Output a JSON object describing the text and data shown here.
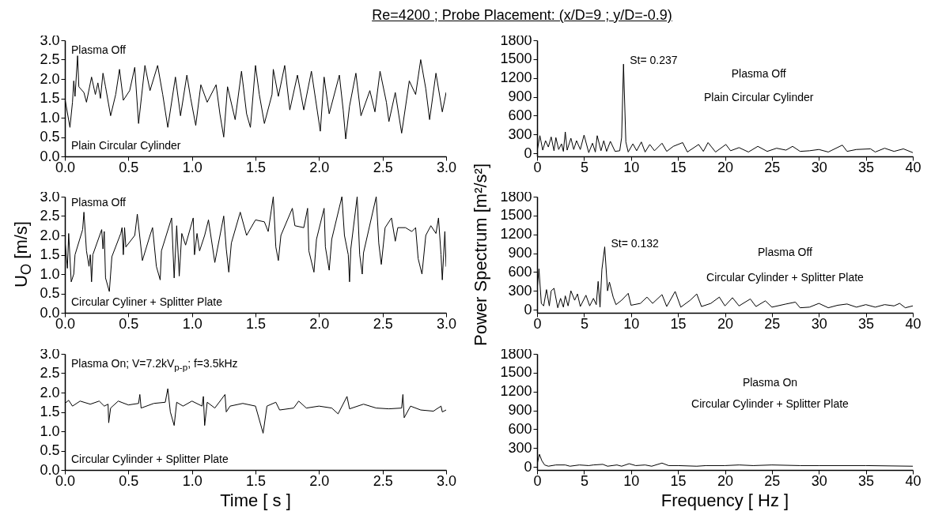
{
  "chart_data": [
    {
      "type": "line",
      "title": "Re=4200 ;  Probe Placement: (x/D=9 ; y/D=-0.9)",
      "annotations": [
        "Plasma Off",
        "Plain Circular Cylinder"
      ],
      "x": [
        0,
        0.04,
        0.06,
        0.07,
        0.08,
        0.1,
        0.11,
        0.15,
        0.17,
        0.21,
        0.24,
        0.26,
        0.28,
        0.3,
        0.32,
        0.36,
        0.4,
        0.43,
        0.46,
        0.51,
        0.55,
        0.58,
        0.63,
        0.67,
        0.73,
        0.77,
        0.81,
        0.87,
        0.91,
        0.96,
        0.99,
        1.03,
        1.07,
        1.12,
        1.19,
        1.22,
        1.25,
        1.28,
        1.34,
        1.39,
        1.43,
        1.46,
        1.5,
        1.53,
        1.57,
        1.63,
        1.64,
        1.68,
        1.73,
        1.77,
        1.83,
        1.88,
        1.94,
        2.01,
        2.04,
        2.08,
        2.16,
        2.19,
        2.21,
        2.24,
        2.29,
        2.33,
        2.4,
        2.44,
        2.48,
        2.53,
        2.55,
        2.6,
        2.65,
        2.71,
        2.76,
        2.8,
        2.84,
        2.87,
        2.92,
        2.97,
        3.0
      ],
      "series": [
        {
          "color": "#000000",
          "values": [
            1.5,
            0.75,
            1.4,
            1.95,
            1.55,
            2.6,
            1.8,
            1.65,
            1.4,
            2.05,
            1.6,
            1.9,
            1.5,
            2.15,
            1.8,
            1.05,
            1.6,
            2.25,
            1.45,
            1.7,
            2.3,
            0.85,
            2.35,
            1.7,
            2.35,
            1.6,
            0.75,
            2.05,
            1.05,
            2.1,
            1.5,
            0.8,
            1.85,
            1.4,
            1.85,
            1.1,
            0.5,
            1.8,
            0.95,
            2.2,
            1.1,
            0.75,
            2.35,
            1.6,
            0.85,
            1.6,
            2.25,
            1.55,
            2.35,
            1.2,
            2.1,
            1.2,
            2.2,
            0.65,
            2.05,
            1.1,
            2.1,
            1.2,
            0.45,
            1.3,
            2.15,
            1.05,
            1.7,
            1.15,
            2.2,
            1.4,
            0.9,
            1.65,
            0.6,
            1.95,
            1.6,
            2.5,
            1.75,
            0.95,
            2.15,
            1.15,
            1.65
          ]
        }
      ],
      "xlim": [
        0,
        3
      ],
      "ylim": [
        0,
        3
      ],
      "xticks": [
        {
          "value": 0,
          "label": "0.0"
        },
        {
          "value": 0.5,
          "label": "0.5"
        },
        {
          "value": 1,
          "label": "1.0"
        },
        {
          "value": 1.5,
          "label": "1.5"
        },
        {
          "value": 2,
          "label": "2.0"
        },
        {
          "value": 2.5,
          "label": "2.5"
        },
        {
          "value": 3,
          "label": "3.0"
        }
      ],
      "yticks": [
        {
          "value": 0,
          "label": "0.0"
        },
        {
          "value": 0.5,
          "label": "0.5"
        },
        {
          "value": 1,
          "label": "1.0"
        },
        {
          "value": 1.5,
          "label": "1.5"
        },
        {
          "value": 2,
          "label": "2.0"
        },
        {
          "value": 2.5,
          "label": "2.5"
        },
        {
          "value": 3,
          "label": "3.0"
        }
      ]
    },
    {
      "type": "line",
      "annotations": [
        {
          "text": "St= 0.237",
          "x": 9.2,
          "y": 1420
        },
        "Plasma Off",
        "Plain Circular Cylinder"
      ],
      "x": [
        0,
        0.3,
        0.6,
        0.9,
        1.2,
        1.5,
        1.8,
        2.0,
        2.3,
        2.6,
        2.8,
        3.0,
        3.2,
        3.6,
        3.9,
        4.2,
        4.6,
        5.0,
        5.5,
        5.9,
        6.2,
        6.4,
        6.8,
        7.1,
        7.4,
        7.8,
        8.3,
        8.8,
        9.0,
        9.2,
        9.45,
        9.7,
        10.2,
        10.6,
        11.1,
        11.5,
        12.0,
        12.5,
        13.3,
        13.8,
        14.5,
        15.5,
        16.0,
        17.2,
        17.7,
        18.2,
        19.0,
        20.1,
        20.6,
        21.5,
        22.5,
        23.5,
        24.5,
        25.5,
        26.5,
        27.2,
        28.0,
        29.0,
        30.0,
        31.0,
        32.5,
        33.0,
        34.0,
        35.5,
        36.0,
        37.0,
        38.0,
        39.0,
        40.0
      ],
      "series": [
        {
          "color": "#000000",
          "values": [
            30,
            280,
            50,
            200,
            100,
            260,
            40,
            250,
            60,
            150,
            30,
            340,
            50,
            240,
            60,
            200,
            60,
            290,
            10,
            160,
            20,
            280,
            40,
            200,
            30,
            190,
            30,
            40,
            250,
            1420,
            180,
            20,
            150,
            40,
            180,
            20,
            140,
            40,
            160,
            30,
            110,
            170,
            20,
            140,
            30,
            170,
            20,
            140,
            40,
            90,
            20,
            110,
            30,
            80,
            50,
            110,
            30,
            40,
            60,
            20,
            130,
            30,
            60,
            70,
            20,
            80,
            30,
            70,
            10
          ]
        }
      ],
      "xlim": [
        0,
        40
      ],
      "ylim": [
        -50,
        1800
      ],
      "xticks": [
        0,
        5,
        10,
        15,
        20,
        25,
        30,
        35,
        40
      ],
      "yticks": [
        0,
        300,
        600,
        900,
        1200,
        1500,
        1800
      ]
    },
    {
      "type": "line",
      "ylabel": "U$_{O}$ [m/s]",
      "annotations": [
        "Plasma Off",
        "Circular Cyliner + Splitter Plate"
      ],
      "x": [
        0,
        0.02,
        0.03,
        0.05,
        0.07,
        0.08,
        0.14,
        0.15,
        0.17,
        0.19,
        0.2,
        0.21,
        0.22,
        0.29,
        0.3,
        0.31,
        0.32,
        0.35,
        0.37,
        0.44,
        0.45,
        0.46,
        0.47,
        0.48,
        0.55,
        0.57,
        0.61,
        0.67,
        0.69,
        0.72,
        0.75,
        0.76,
        0.84,
        0.86,
        0.88,
        0.9,
        0.92,
        0.95,
        1.01,
        1.02,
        1.04,
        1.06,
        1.1,
        1.13,
        1.18,
        1.25,
        1.27,
        1.29,
        1.31,
        1.38,
        1.43,
        1.5,
        1.57,
        1.6,
        1.64,
        1.66,
        1.68,
        1.7,
        1.79,
        1.81,
        1.88,
        1.91,
        1.92,
        1.96,
        1.98,
        2.04,
        2.05,
        2.08,
        2.1,
        2.18,
        2.2,
        2.23,
        2.24,
        2.25,
        2.3,
        2.32,
        2.34,
        2.35,
        2.45,
        2.47,
        2.49,
        2.52,
        2.57,
        2.6,
        2.62,
        2.68,
        2.73,
        2.76,
        2.78,
        2.81,
        2.84,
        2.88,
        2.92,
        2.94,
        2.96,
        2.97,
        2.99,
        3.0
      ],
      "series": [
        {
          "color": "#000000",
          "values": [
            1.9,
            1.15,
            2.05,
            0.8,
            1.0,
            1.5,
            2.15,
            2.6,
            1.6,
            1.2,
            1.5,
            0.8,
            1.5,
            2.15,
            1.65,
            2.1,
            0.9,
            0.55,
            1.45,
            2.05,
            2.2,
            1.5,
            2.2,
            1.7,
            2.0,
            2.55,
            1.35,
            2.0,
            2.2,
            1.2,
            0.85,
            1.6,
            2.45,
            0.9,
            2.25,
            0.95,
            2.05,
            1.75,
            2.45,
            1.5,
            2.05,
            1.6,
            2.0,
            2.4,
            1.3,
            2.5,
            1.65,
            1.05,
            1.8,
            2.6,
            2.0,
            2.4,
            2.35,
            2.1,
            3.0,
            1.7,
            1.35,
            2.0,
            2.7,
            2.25,
            2.2,
            2.7,
            1.6,
            1.05,
            1.9,
            2.7,
            1.7,
            1.1,
            1.9,
            3.0,
            2.0,
            1.5,
            0.8,
            1.65,
            3.0,
            1.5,
            1.0,
            1.55,
            3.0,
            1.8,
            1.25,
            2.2,
            2.45,
            1.85,
            2.2,
            2.2,
            2.1,
            2.2,
            1.4,
            1.0,
            2.0,
            2.25,
            2.05,
            2.45,
            1.5,
            0.85,
            2.1,
            1.2
          ]
        }
      ],
      "xlim": [
        0,
        3
      ],
      "ylim": [
        0,
        3
      ],
      "xticks": [
        {
          "value": 0,
          "label": "0.0"
        },
        {
          "value": 0.5,
          "label": "0.5"
        },
        {
          "value": 1,
          "label": "1.0"
        },
        {
          "value": 1.5,
          "label": "1.5"
        },
        {
          "value": 2,
          "label": "2.0"
        },
        {
          "value": 2.5,
          "label": "2.5"
        },
        {
          "value": 3,
          "label": "3.0"
        }
      ],
      "yticks": [
        {
          "value": 0,
          "label": "0.0"
        },
        {
          "value": 0.5,
          "label": "0.5"
        },
        {
          "value": 1,
          "label": "1.0"
        },
        {
          "value": 1.5,
          "label": "1.5"
        },
        {
          "value": 2,
          "label": "2.0"
        },
        {
          "value": 2.5,
          "label": "2.5"
        },
        {
          "value": 3,
          "label": "3.0"
        }
      ]
    },
    {
      "type": "line",
      "ylabel": "Power Spectrum [m²/s²]",
      "annotations": [
        {
          "text": "St= 0.132",
          "x": 7.2,
          "y": 1000
        },
        "Plasma Off",
        "Circular Cylinder + Splitter Plate"
      ],
      "x": [
        0,
        0.2,
        0.45,
        0.7,
        1.0,
        1.3,
        1.5,
        1.8,
        2.2,
        2.5,
        2.8,
        3.0,
        3.3,
        3.6,
        4.0,
        4.3,
        4.6,
        5.2,
        5.6,
        6.0,
        6.3,
        6.5,
        6.7,
        6.9,
        7.2,
        7.5,
        7.7,
        8.1,
        8.4,
        9.0,
        9.7,
        10.0,
        11.0,
        11.7,
        12.3,
        13.3,
        13.8,
        14.7,
        15.3,
        16.3,
        17.0,
        17.5,
        18.5,
        19.4,
        20.0,
        20.8,
        21.5,
        22.7,
        23.3,
        24.3,
        25.0,
        26.5,
        27.5,
        28.0,
        29.0,
        30.0,
        31.0,
        32.0,
        33.0,
        34.0,
        35.0,
        36.0,
        37.0,
        38.0,
        38.6,
        39.2,
        40.0
      ],
      "series": [
        {
          "color": "#000000",
          "values": [
            300,
            650,
            100,
            60,
            320,
            60,
            300,
            340,
            30,
            180,
            40,
            220,
            60,
            300,
            150,
            250,
            50,
            230,
            60,
            180,
            80,
            450,
            40,
            640,
            1000,
            300,
            440,
            200,
            80,
            150,
            260,
            70,
            100,
            200,
            100,
            240,
            50,
            290,
            40,
            150,
            250,
            50,
            100,
            200,
            60,
            190,
            60,
            170,
            50,
            140,
            40,
            90,
            120,
            30,
            40,
            100,
            30,
            70,
            90,
            40,
            80,
            40,
            80,
            60,
            100,
            30,
            60
          ]
        }
      ],
      "xlim": [
        0,
        40
      ],
      "ylim": [
        -50,
        1800
      ],
      "xticks": [
        0,
        5,
        10,
        15,
        20,
        25,
        30,
        35,
        40
      ],
      "yticks": [
        0,
        300,
        600,
        900,
        1200,
        1500,
        1800
      ]
    },
    {
      "type": "line",
      "xlabel": "Time [ s ]",
      "annotations": [
        "Plasma On; V=7.2kV$_{p-p}$; f=3.5kHz",
        "Circular Cylinder + Splitter Plate"
      ],
      "x": [
        0,
        0.03,
        0.06,
        0.12,
        0.2,
        0.27,
        0.31,
        0.34,
        0.345,
        0.36,
        0.42,
        0.5,
        0.58,
        0.59,
        0.6,
        0.7,
        0.79,
        0.81,
        0.83,
        0.86,
        0.88,
        0.93,
        1.0,
        1.08,
        1.09,
        1.1,
        1.12,
        1.18,
        1.26,
        1.27,
        1.3,
        1.4,
        1.5,
        1.56,
        1.59,
        1.66,
        1.69,
        1.8,
        1.84,
        1.9,
        2.0,
        2.1,
        2.15,
        2.22,
        2.24,
        2.35,
        2.45,
        2.55,
        2.65,
        2.66,
        2.67,
        2.72,
        2.8,
        2.9,
        2.96,
        2.97,
        3.0
      ],
      "series": [
        {
          "color": "#000000",
          "values": [
            1.72,
            1.8,
            1.65,
            1.78,
            1.7,
            1.78,
            1.65,
            1.7,
            1.22,
            1.6,
            1.78,
            1.68,
            1.72,
            1.95,
            1.6,
            1.72,
            1.75,
            2.1,
            1.5,
            1.15,
            1.75,
            1.65,
            1.78,
            1.65,
            1.9,
            1.15,
            1.75,
            1.6,
            1.95,
            1.5,
            1.65,
            1.72,
            1.65,
            0.95,
            1.65,
            1.75,
            1.55,
            1.6,
            1.78,
            1.6,
            1.65,
            1.6,
            1.45,
            1.9,
            1.58,
            1.7,
            1.6,
            1.58,
            1.6,
            1.95,
            1.35,
            1.65,
            1.55,
            1.52,
            1.65,
            1.5,
            1.55
          ]
        }
      ],
      "xlim": [
        0,
        3
      ],
      "ylim": [
        0,
        3
      ],
      "xticks": [
        {
          "value": 0,
          "label": "0.0"
        },
        {
          "value": 0.5,
          "label": "0.5"
        },
        {
          "value": 1,
          "label": "1.0"
        },
        {
          "value": 1.5,
          "label": "1.5"
        },
        {
          "value": 2,
          "label": "2.0"
        },
        {
          "value": 2.5,
          "label": "2.5"
        },
        {
          "value": 3,
          "label": "3.0"
        }
      ],
      "yticks": [
        {
          "value": 0,
          "label": "0.0"
        },
        {
          "value": 0.5,
          "label": "0.5"
        },
        {
          "value": 1,
          "label": "1.0"
        },
        {
          "value": 1.5,
          "label": "1.5"
        },
        {
          "value": 2,
          "label": "2.0"
        },
        {
          "value": 2.5,
          "label": "2.5"
        },
        {
          "value": 3,
          "label": "3.0"
        }
      ]
    },
    {
      "type": "line",
      "xlabel": "Frequency [ Hz ]",
      "annotations": [
        "Plasma On",
        "Circular Cylinder + Splitter Plate"
      ],
      "x": [
        0,
        0.25,
        0.5,
        0.8,
        1.2,
        2,
        3,
        3.5,
        4.5,
        5.5,
        6,
        7,
        7.5,
        8.5,
        9,
        9.8,
        10.5,
        11.5,
        12.2,
        13.3,
        14,
        15,
        17,
        18,
        20,
        21.5,
        23,
        25,
        28,
        30,
        35,
        40
      ],
      "series": [
        {
          "color": "#000000",
          "values": [
            40,
            200,
            100,
            30,
            10,
            30,
            30,
            10,
            30,
            20,
            30,
            40,
            10,
            30,
            10,
            50,
            20,
            30,
            10,
            60,
            20,
            20,
            10,
            20,
            20,
            30,
            20,
            30,
            20,
            20,
            20,
            10
          ]
        }
      ],
      "xlim": [
        0,
        40
      ],
      "ylim": [
        -50,
        1800
      ],
      "xticks": [
        0,
        5,
        10,
        15,
        20,
        25,
        30,
        35,
        40
      ],
      "yticks": [
        0,
        300,
        600,
        900,
        1200,
        1500,
        1800
      ]
    }
  ]
}
